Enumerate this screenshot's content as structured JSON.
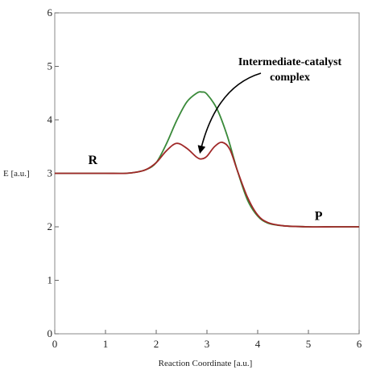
{
  "chart_data": {
    "type": "line",
    "xlabel": "Reaction Coordinate [a.u.]",
    "ylabel": "E [a.u.]",
    "xlim": [
      0,
      6
    ],
    "ylim": [
      0,
      6
    ],
    "xticks": [
      "0",
      "1",
      "2",
      "3",
      "4",
      "5",
      "6"
    ],
    "yticks": [
      "0",
      "1",
      "2",
      "3",
      "4",
      "5",
      "6"
    ],
    "grid": false,
    "legend": "none",
    "series": [
      {
        "color": "#3a8a3a",
        "x": [
          0,
          0.5,
          1.0,
          1.4,
          1.6,
          1.8,
          2.0,
          2.2,
          2.4,
          2.6,
          2.8,
          2.9,
          3.0,
          3.2,
          3.4,
          3.6,
          3.8,
          4.0,
          4.2,
          4.5,
          5.0,
          5.5,
          6.0
        ],
        "y": [
          3.0,
          3.0,
          3.0,
          3.0,
          3.02,
          3.07,
          3.2,
          3.55,
          3.98,
          4.33,
          4.5,
          4.52,
          4.48,
          4.2,
          3.7,
          3.05,
          2.5,
          2.2,
          2.07,
          2.02,
          2.0,
          2.0,
          2.0
        ]
      },
      {
        "color": "#a02828",
        "x": [
          0,
          0.5,
          1.0,
          1.4,
          1.6,
          1.8,
          2.0,
          2.2,
          2.4,
          2.6,
          2.8,
          2.9,
          3.0,
          3.15,
          3.3,
          3.45,
          3.6,
          3.8,
          4.0,
          4.2,
          4.5,
          5.0,
          5.5,
          6.0
        ],
        "y": [
          3.0,
          3.0,
          3.0,
          3.0,
          3.02,
          3.07,
          3.2,
          3.42,
          3.56,
          3.47,
          3.3,
          3.27,
          3.32,
          3.5,
          3.58,
          3.45,
          3.05,
          2.55,
          2.22,
          2.08,
          2.02,
          2.0,
          2.0,
          2.0
        ]
      }
    ],
    "annotations": [
      {
        "text_lines": [
          "Intermediate-catalyst",
          "complex"
        ],
        "arrow_to": {
          "x": 2.87,
          "y": 3.35
        }
      },
      {
        "text": "R",
        "x": 0.75,
        "y": 3.17
      },
      {
        "text": "P",
        "x": 5.2,
        "y": 2.13
      }
    ]
  }
}
